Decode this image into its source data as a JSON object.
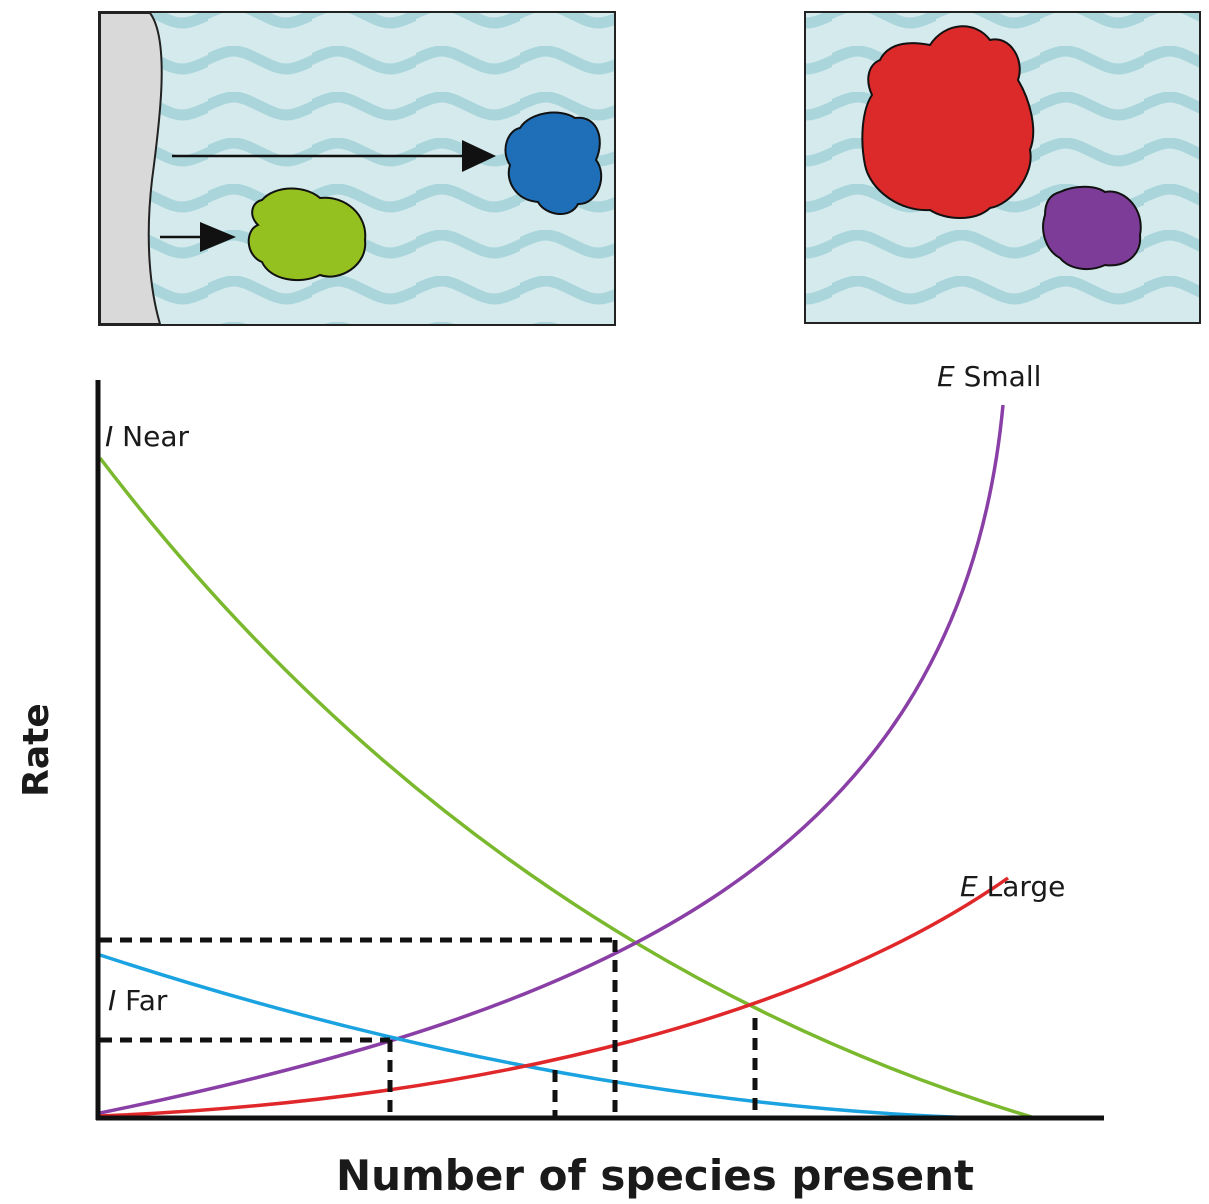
{
  "axes": {
    "y_title": "Rate",
    "x_title": "Number of species present"
  },
  "curves": [
    {
      "symbol": "I",
      "name": "Near"
    },
    {
      "symbol": "I",
      "name": "Far"
    },
    {
      "symbol": "E",
      "name": "Small"
    },
    {
      "symbol": "E",
      "name": "Large"
    }
  ]
}
